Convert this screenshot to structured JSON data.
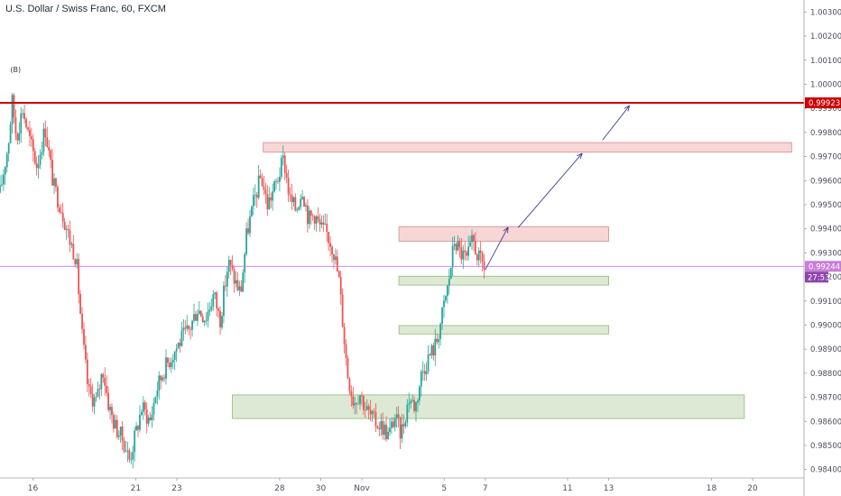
{
  "header": {
    "title": "U.S. Dollar / Swiss Franc, 60, FXCM"
  },
  "colors": {
    "up": "#26a69a",
    "down": "#ef5350",
    "resistance_line": "#cc0000",
    "current_line": "#c77dd7",
    "supply_fill": "#f7d6d6",
    "supply_border": "#d98a8a",
    "demand_fill": "#dde9d4",
    "demand_border": "#8fb87a",
    "arrow": "#3b3f8f"
  },
  "chart_data": {
    "type": "candlestick",
    "ylim": [
      0.98365,
      1.0035
    ],
    "y_ticks": [
      "1.00300",
      "1.00200",
      "1.00100",
      "1.00000",
      "0.99900",
      "0.99800",
      "0.99700",
      "0.99600",
      "0.99500",
      "0.99400",
      "0.99300",
      "0.99200",
      "0.99100",
      "0.99000",
      "0.98900",
      "0.98800",
      "0.98700",
      "0.98600",
      "0.98500",
      "0.98400"
    ],
    "x_ticks": [
      {
        "label": "16",
        "day": 16
      },
      {
        "label": "21",
        "day": 21
      },
      {
        "label": "23",
        "day": 23
      },
      {
        "label": "28",
        "day": 28
      },
      {
        "label": "30",
        "day": 30
      },
      {
        "label": "Nov",
        "day": 32
      },
      {
        "label": "5",
        "day": 36
      },
      {
        "label": "7",
        "day": 38
      },
      {
        "label": "11",
        "day": 42
      },
      {
        "label": "13",
        "day": 44
      },
      {
        "label": "18",
        "day": 49
      },
      {
        "label": "20",
        "day": 51
      }
    ],
    "xlim_days": [
      14.4,
      53.5
    ],
    "wave_label": {
      "text": "(B)",
      "day": 14.9,
      "value": 1.0005
    },
    "price_path": [
      [
        14.4,
        0.9955
      ],
      [
        14.8,
        0.9975
      ],
      [
        15.0,
        0.9993
      ],
      [
        15.2,
        0.9978
      ],
      [
        15.5,
        0.999
      ],
      [
        15.8,
        0.9978
      ],
      [
        16.2,
        0.9966
      ],
      [
        16.6,
        0.9982
      ],
      [
        17.0,
        0.9958
      ],
      [
        17.4,
        0.9948
      ],
      [
        17.8,
        0.9935
      ],
      [
        18.1,
        0.9928
      ],
      [
        18.4,
        0.9895
      ],
      [
        18.7,
        0.9872
      ],
      [
        19.1,
        0.9868
      ],
      [
        19.4,
        0.9882
      ],
      [
        19.7,
        0.9866
      ],
      [
        20.0,
        0.9858
      ],
      [
        20.4,
        0.9852
      ],
      [
        20.7,
        0.9844
      ],
      [
        21.0,
        0.9855
      ],
      [
        21.3,
        0.9866
      ],
      [
        21.7,
        0.986
      ],
      [
        22.0,
        0.9873
      ],
      [
        22.4,
        0.9882
      ],
      [
        22.8,
        0.9888
      ],
      [
        23.2,
        0.9894
      ],
      [
        23.6,
        0.9898
      ],
      [
        24.0,
        0.9907
      ],
      [
        24.4,
        0.9903
      ],
      [
        24.8,
        0.9913
      ],
      [
        25.1,
        0.9902
      ],
      [
        25.5,
        0.9926
      ],
      [
        25.8,
        0.9919
      ],
      [
        26.1,
        0.9913
      ],
      [
        26.4,
        0.9938
      ],
      [
        26.8,
        0.9953
      ],
      [
        27.1,
        0.9962
      ],
      [
        27.4,
        0.995
      ],
      [
        27.8,
        0.9958
      ],
      [
        28.2,
        0.9969
      ],
      [
        28.5,
        0.9952
      ],
      [
        28.8,
        0.9948
      ],
      [
        29.1,
        0.9957
      ],
      [
        29.4,
        0.9944
      ],
      [
        29.7,
        0.9946
      ],
      [
        30.0,
        0.994
      ],
      [
        30.3,
        0.9938
      ],
      [
        30.6,
        0.9932
      ],
      [
        30.9,
        0.9918
      ],
      [
        31.1,
        0.9898
      ],
      [
        31.3,
        0.988
      ],
      [
        31.6,
        0.9868
      ],
      [
        31.9,
        0.9872
      ],
      [
        32.2,
        0.9865
      ],
      [
        32.6,
        0.986
      ],
      [
        33.0,
        0.9858
      ],
      [
        33.3,
        0.9854
      ],
      [
        33.6,
        0.9862
      ],
      [
        33.9,
        0.9855
      ],
      [
        34.3,
        0.987
      ],
      [
        34.6,
        0.9866
      ],
      [
        34.9,
        0.988
      ],
      [
        35.2,
        0.9886
      ],
      [
        35.6,
        0.9892
      ],
      [
        35.9,
        0.9904
      ],
      [
        36.2,
        0.9917
      ],
      [
        36.5,
        0.9935
      ],
      [
        36.8,
        0.993
      ],
      [
        37.1,
        0.9927
      ],
      [
        37.4,
        0.9935
      ],
      [
        37.7,
        0.9927
      ],
      [
        38.0,
        0.9924
      ]
    ],
    "horizontal_lines": [
      {
        "name": "resistance",
        "value": 0.99923,
        "label": "0.99923"
      },
      {
        "name": "current-price",
        "value": 0.99244,
        "label": "0.99244"
      }
    ],
    "countdown": "27:53",
    "zones": [
      {
        "kind": "supply",
        "day_from": 27.2,
        "day_to": 52.9,
        "value_low": 0.99718,
        "value_high": 0.99758
      },
      {
        "kind": "supply",
        "day_from": 33.8,
        "day_to": 44.0,
        "value_low": 0.99348,
        "value_high": 0.99408
      },
      {
        "kind": "demand",
        "day_from": 33.8,
        "day_to": 44.0,
        "value_low": 0.99166,
        "value_high": 0.99203
      },
      {
        "kind": "demand",
        "day_from": 33.8,
        "day_to": 44.0,
        "value_low": 0.98963,
        "value_high": 0.98998
      },
      {
        "kind": "demand",
        "day_from": 25.7,
        "day_to": 50.6,
        "value_low": 0.98612,
        "value_high": 0.9871
      }
    ],
    "projection_arrows": [
      {
        "from_day": 38.0,
        "from_value": 0.9923,
        "to_day": 39.1,
        "to_value": 0.99405
      },
      {
        "from_day": 39.6,
        "from_value": 0.99405,
        "to_day": 42.7,
        "to_value": 0.99712
      },
      {
        "from_day": 43.7,
        "from_value": 0.99768,
        "to_day": 45.0,
        "to_value": 0.9991
      }
    ]
  }
}
